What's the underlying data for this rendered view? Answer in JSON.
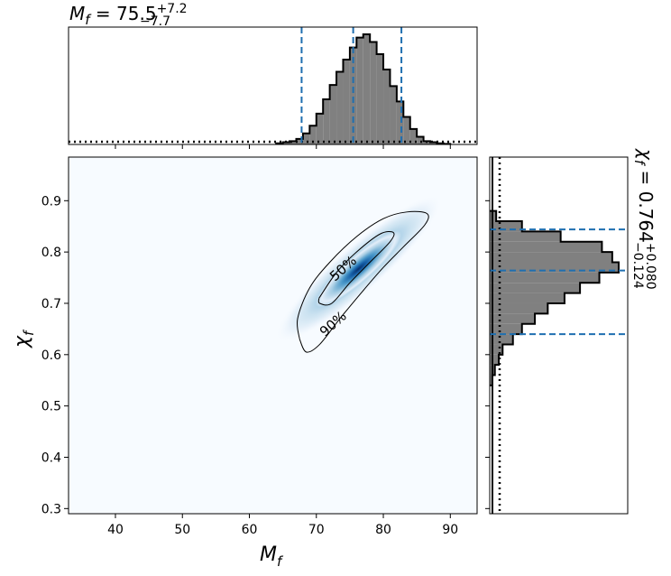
{
  "chart_data": {
    "type": "corner",
    "joint": {
      "kind": "heatmap-with-contours",
      "xlabel": "M_f",
      "ylabel": "χ_f",
      "xlim": [
        33,
        94
      ],
      "ylim": [
        0.29,
        0.985
      ],
      "xticks": [
        "40",
        "50",
        "60",
        "70",
        "80",
        "90"
      ],
      "yticks": [
        "0.3",
        "0.4",
        "0.5",
        "0.6",
        "0.7",
        "0.8",
        "0.9"
      ],
      "colormap": [
        "#f7fbff",
        "#c6dbef",
        "#6baed6",
        "#2171b5",
        "#08306b"
      ],
      "contours": [
        {
          "label": "50%",
          "center": [
            76.3,
            0.767
          ],
          "semi_major_pct_x": 6.5,
          "semi_minor": 0.033,
          "slope": 0.0085
        },
        {
          "label": "90%",
          "center": [
            77.4,
            0.74
          ],
          "semi_major_pct_x": 10.0,
          "semi_minor": 0.06,
          "slope": 0.0085
        }
      ]
    },
    "marginal_x": {
      "title": "M_f = 75.5+7.2−7.7",
      "median": 75.5,
      "bounds": [
        67.8,
        82.7
      ],
      "prior": "dotted",
      "bins": [
        64,
        65,
        66,
        67,
        68,
        69,
        70,
        71,
        72,
        73,
        74,
        75,
        76,
        77,
        78,
        79,
        80,
        81,
        82,
        83,
        84,
        85,
        86,
        87,
        88,
        89
      ],
      "density": [
        0.01,
        0.02,
        0.03,
        0.05,
        0.1,
        0.17,
        0.28,
        0.41,
        0.54,
        0.66,
        0.77,
        0.88,
        0.97,
        1.0,
        0.93,
        0.82,
        0.68,
        0.53,
        0.39,
        0.25,
        0.14,
        0.07,
        0.03,
        0.02,
        0.01,
        0.005
      ]
    },
    "marginal_y": {
      "title": "χ_f = 0.764+0.080−0.124",
      "median": 0.764,
      "bounds": [
        0.64,
        0.844
      ],
      "prior": "dotted",
      "bins": [
        0.54,
        0.56,
        0.58,
        0.6,
        0.62,
        0.64,
        0.66,
        0.68,
        0.7,
        0.72,
        0.74,
        0.76,
        0.78,
        0.8,
        0.82,
        0.84,
        0.86
      ],
      "density": [
        0.02,
        0.04,
        0.07,
        0.1,
        0.18,
        0.25,
        0.35,
        0.45,
        0.58,
        0.7,
        0.85,
        1.0,
        0.95,
        0.87,
        0.55,
        0.25,
        0.05
      ]
    },
    "colors": {
      "hist_fill": "#808080",
      "quantile_line": "#1f6fb0"
    }
  },
  "text": {
    "mf_title_main": "M",
    "mf_title_sub": "f",
    "mf_title_eq": " = 75.5",
    "mf_title_sup": "+7.2",
    "mf_title_low": "−7.7",
    "chi_title_main": "χ",
    "chi_title_sub": "f",
    "chi_title_eq": " = 0.764",
    "chi_title_sup": "+0.080",
    "chi_title_low": "−0.124",
    "xlabel_main": "M",
    "xlabel_sub": "f",
    "ylabel_main": "χ",
    "ylabel_sub": "f"
  }
}
